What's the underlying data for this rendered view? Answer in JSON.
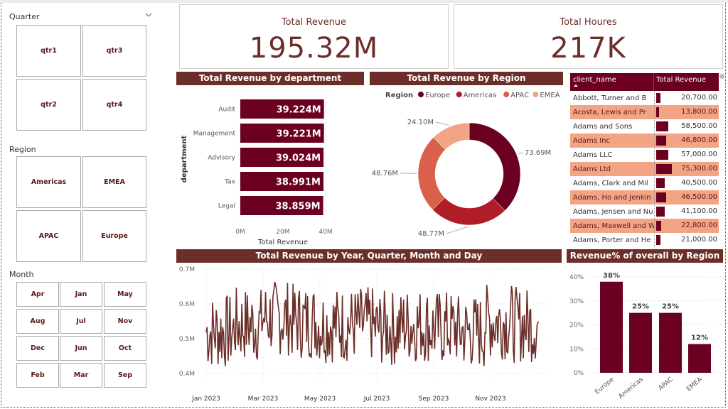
{
  "slicers": {
    "quarter": {
      "title": "Quarter",
      "items": [
        "qtr1",
        "qtr3",
        "qtr2",
        "qtr4"
      ]
    },
    "region": {
      "title": "Region",
      "items": [
        "Americas",
        "EMEA",
        "APAC",
        "Europe"
      ]
    },
    "month": {
      "title": "Month",
      "items": [
        "Apr",
        "Jan",
        "May",
        "Aug",
        "Jul",
        "Nov",
        "Dec",
        "Jun",
        "Oct",
        "Feb",
        "Mar",
        "Sep"
      ]
    }
  },
  "cards": {
    "revenue": {
      "label": "Total Revenue",
      "value": "195.32M"
    },
    "hours": {
      "label": "Total Houres",
      "value": "217K"
    }
  },
  "colors": {
    "header": "#6b2e28",
    "bar": "#6b0020",
    "europe": "#6b0020",
    "americas": "#b01c28",
    "apac": "#d9604a",
    "emea": "#f3a484",
    "line": "#6b2e28"
  },
  "table": {
    "headers": [
      "client_name",
      "Total Revenue"
    ],
    "rows": [
      {
        "name": "Abbott, Turner and B",
        "value": "20,700.00",
        "num": 20700
      },
      {
        "name": "Acosta, Lewis and Pr",
        "value": "13,800.00",
        "num": 13800
      },
      {
        "name": "Adams and Sons",
        "value": "58,500.00",
        "num": 58500
      },
      {
        "name": "Adams Inc",
        "value": "46,800.00",
        "num": 46800
      },
      {
        "name": "Adams LLC",
        "value": "57,000.00",
        "num": 57000
      },
      {
        "name": "Adams Ltd",
        "value": "75,300.00",
        "num": 75300
      },
      {
        "name": "Adams, Clark and Mil",
        "value": "40,500.00",
        "num": 40500
      },
      {
        "name": "Adams, Ho and Jenkin",
        "value": "46,500.00",
        "num": 46500
      },
      {
        "name": "Adams, Jensen and Nu",
        "value": "41,100.00",
        "num": 41100
      },
      {
        "name": "Adams, Maxwell and W",
        "value": "22,800.00",
        "num": 22800
      },
      {
        "name": "Adams, Porter and He",
        "value": "21,000.00",
        "num": 21000
      }
    ]
  },
  "chart_data": [
    {
      "id": "dept",
      "type": "bar",
      "orientation": "horizontal",
      "title": "Total Revenue by department",
      "categories": [
        "Audit",
        "Management",
        "Advisory",
        "Tax",
        "Legal"
      ],
      "values": [
        39.224,
        39.221,
        39.024,
        38.991,
        38.859
      ],
      "data_labels": [
        "39.224M",
        "39.221M",
        "39.024M",
        "38.991M",
        "38.859M"
      ],
      "xlabel": "Total Revenue",
      "ylabel": "department",
      "xlim": [
        0,
        40
      ],
      "xticks": [
        "0M",
        "20M",
        "40M"
      ],
      "unit": "M"
    },
    {
      "id": "region",
      "type": "pie",
      "donut": true,
      "title": "Total Revenue by Region",
      "legend_title": "Region",
      "legend_position": "top",
      "categories": [
        "Europe",
        "Americas",
        "APAC",
        "EMEA"
      ],
      "values": [
        73.69,
        48.77,
        48.76,
        24.1
      ],
      "data_labels": [
        "73.69M",
        "48.77M",
        "48.76M",
        "24.10M"
      ]
    },
    {
      "id": "timeline",
      "type": "line",
      "title": "Total Revenue by Year, Quarter, Month and Day",
      "ylim": [
        0.4,
        0.7
      ],
      "yticks": [
        "0.4M",
        "0.5M",
        "0.6M",
        "0.7M"
      ],
      "xticks": [
        "Jan 2023",
        "Mar 2023",
        "May 2023",
        "Jul 2023",
        "Sep 2023",
        "Nov 2023"
      ],
      "x_range": [
        "2023-01-01",
        "2023-12-31"
      ],
      "grid": true,
      "y_sample_monthly_mean_M": [
        0.52,
        0.54,
        0.56,
        0.55,
        0.54,
        0.54,
        0.53,
        0.54,
        0.53,
        0.52,
        0.55,
        0.54
      ],
      "y_daily_range_M": [
        0.4,
        0.69
      ]
    },
    {
      "id": "pct",
      "type": "bar",
      "title": "Revenue% of overall by Region",
      "categories": [
        "Europe",
        "Americas",
        "APAC",
        "EMEA"
      ],
      "values": [
        38,
        25,
        25,
        12
      ],
      "data_labels": [
        "38%",
        "25%",
        "25%",
        "12%"
      ],
      "ylim": [
        0,
        40
      ],
      "yticks": [
        "0%",
        "10%",
        "20%",
        "30%",
        "40%"
      ],
      "grid": true
    }
  ]
}
